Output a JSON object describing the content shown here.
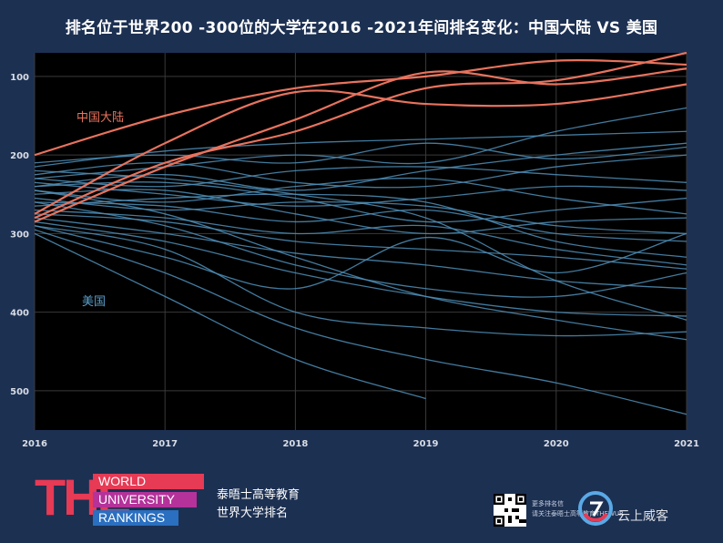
{
  "title": "排名位于世界200 -300位的大学在2016 -2021年间排名变化：中国大陆 VS 美国",
  "chart_data": {
    "type": "line",
    "xlabel": "",
    "ylabel": "",
    "x": [
      2016,
      2017,
      2018,
      2019,
      2020,
      2021
    ],
    "x_tick_labels": [
      "2016",
      "2017",
      "2018",
      "2019",
      "2020",
      "2021"
    ],
    "y_ticks": [
      100,
      200,
      300,
      400,
      500
    ],
    "y_tick_labels": [
      "100",
      "200",
      "300",
      "400",
      "500"
    ],
    "ylim": [
      550,
      70
    ],
    "y_inverted": true,
    "grid": true,
    "annotations": [
      {
        "text": "中国大陆",
        "color": "#e8735e"
      },
      {
        "text": "美国",
        "color": "#5a9fc9"
      }
    ],
    "colors": {
      "china": "#e8735e",
      "usa": "#4f8fb8",
      "plot_bg": "#000000",
      "page_bg": "#1c3052",
      "grid": "#3a3a3a"
    },
    "series": [
      {
        "group": "china",
        "values": [
          200,
          150,
          115,
          100,
          80,
          85
        ]
      },
      {
        "group": "china",
        "values": [
          280,
          210,
          170,
          115,
          105,
          70
        ]
      },
      {
        "group": "china",
        "values": [
          285,
          215,
          155,
          95,
          110,
          90
        ]
      },
      {
        "group": "china",
        "values": [
          275,
          185,
          120,
          135,
          135,
          110
        ]
      },
      {
        "group": "usa",
        "values": [
          215,
          195,
          185,
          180,
          175,
          170
        ]
      },
      {
        "group": "usa",
        "values": [
          210,
          200,
          210,
          185,
          205,
          190
        ]
      },
      {
        "group": "usa",
        "values": [
          225,
          210,
          235,
          240,
          215,
          200
        ]
      },
      {
        "group": "usa",
        "values": [
          230,
          240,
          220,
          215,
          225,
          235
        ]
      },
      {
        "group": "usa",
        "values": [
          235,
          250,
          265,
          255,
          240,
          245
        ]
      },
      {
        "group": "usa",
        "values": [
          240,
          235,
          255,
          285,
          270,
          255
        ]
      },
      {
        "group": "usa",
        "values": [
          245,
          260,
          240,
          230,
          255,
          275
        ]
      },
      {
        "group": "usa",
        "values": [
          250,
          245,
          275,
          300,
          285,
          280
        ]
      },
      {
        "group": "usa",
        "values": [
          255,
          270,
          260,
          265,
          290,
          300
        ]
      },
      {
        "group": "usa",
        "values": [
          260,
          265,
          285,
          270,
          300,
          310
        ]
      },
      {
        "group": "usa",
        "values": [
          265,
          255,
          250,
          260,
          310,
          330
        ]
      },
      {
        "group": "usa",
        "values": [
          270,
          280,
          300,
          290,
          320,
          340
        ]
      },
      {
        "group": "usa",
        "values": [
          275,
          285,
          310,
          320,
          330,
          345
        ]
      },
      {
        "group": "usa",
        "values": [
          280,
          300,
          325,
          340,
          360,
          370
        ]
      },
      {
        "group": "usa",
        "values": [
          285,
          310,
          350,
          380,
          400,
          405
        ]
      },
      {
        "group": "usa",
        "values": [
          290,
          320,
          400,
          420,
          430,
          425
        ]
      },
      {
        "group": "usa",
        "values": [
          295,
          350,
          420,
          460,
          490,
          530
        ]
      },
      {
        "group": "usa",
        "values": [
          300,
          380,
          460,
          510,
          null,
          null
        ]
      },
      {
        "group": "usa",
        "values": [
          245,
          275,
          330,
          380,
          410,
          435
        ]
      },
      {
        "group": "usa",
        "values": [
          220,
          230,
          250,
          280,
          360,
          410
        ]
      },
      {
        "group": "usa",
        "values": [
          290,
          330,
          370,
          305,
          350,
          300
        ]
      },
      {
        "group": "usa",
        "values": [
          230,
          215,
          200,
          210,
          170,
          140
        ]
      },
      {
        "group": "usa",
        "values": [
          240,
          225,
          245,
          220,
          200,
          185
        ]
      },
      {
        "group": "usa",
        "values": [
          260,
          290,
          340,
          370,
          380,
          350
        ]
      }
    ]
  },
  "branding": {
    "logo_letters": "THE",
    "logo_line1": "WORLD",
    "logo_line2": "UNIVERSITY",
    "logo_line3": "RANKINGS",
    "publisher_line1": "泰晤士高等教育",
    "publisher_line2": "世界大学排名",
    "qr_caption_line1": "更多排名信",
    "qr_caption_line2": "请关注泰晤士高等教育THEWUR",
    "watermark_text": "云上威客"
  }
}
